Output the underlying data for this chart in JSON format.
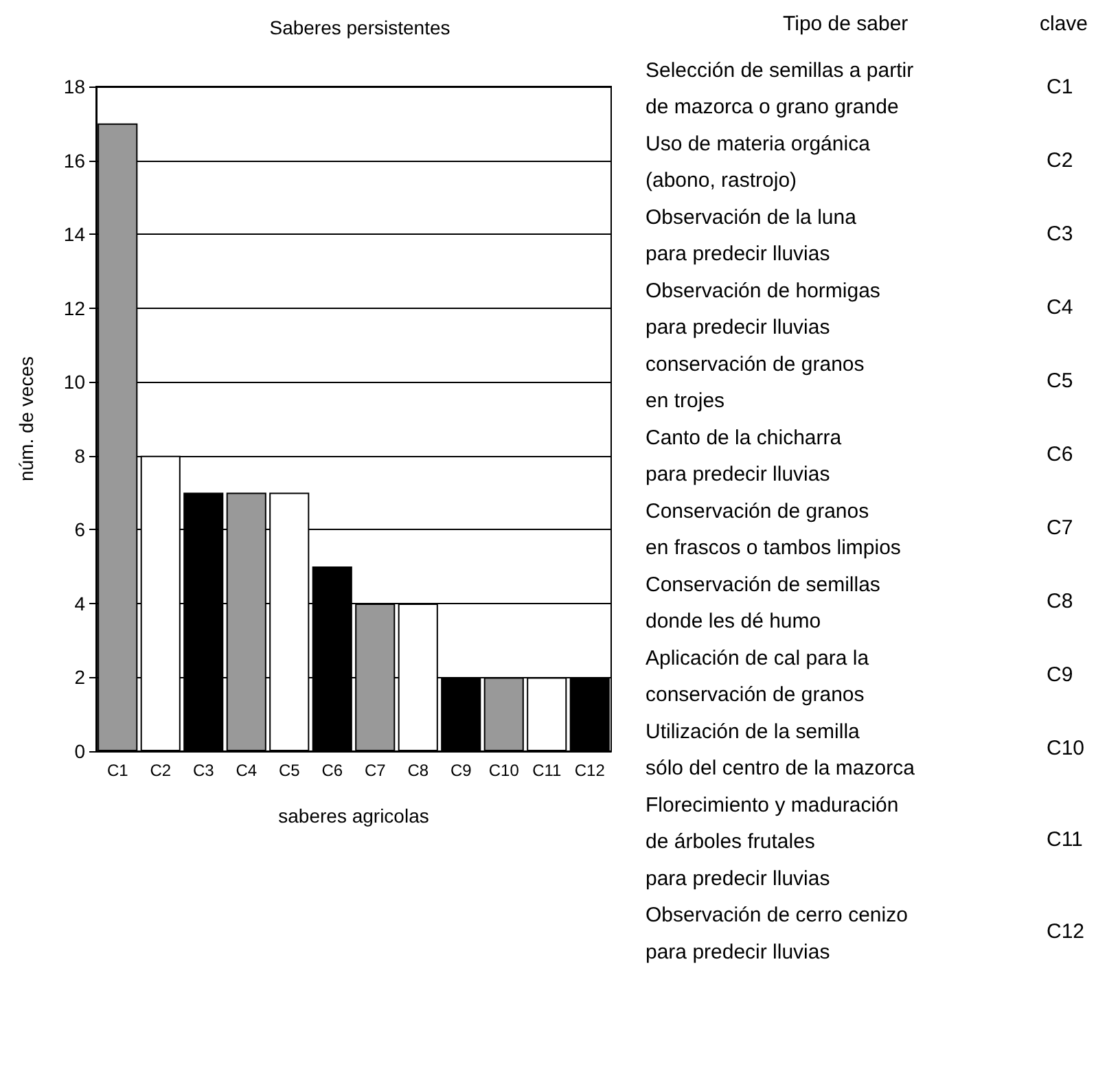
{
  "chart_data": {
    "type": "bar",
    "title": "Saberes persistentes",
    "xlabel": "saberes agricolas",
    "ylabel": "núm. de veces",
    "categories": [
      "C1",
      "C2",
      "C3",
      "C4",
      "C5",
      "C6",
      "C7",
      "C8",
      "C9",
      "C10",
      "C11",
      "C12"
    ],
    "values": [
      17,
      8,
      7,
      7,
      7,
      5,
      4,
      4,
      2,
      2,
      2,
      2
    ],
    "colors": [
      "#999999",
      "#ffffff",
      "#000000",
      "#999999",
      "#ffffff",
      "#000000",
      "#999999",
      "#ffffff",
      "#000000",
      "#999999",
      "#ffffff",
      "#000000"
    ],
    "ylim": [
      0,
      18
    ],
    "yticks": [
      0,
      2,
      4,
      6,
      8,
      10,
      12,
      14,
      16,
      18
    ],
    "grid": "y",
    "annotations": [
      "Tipo de saber",
      "clave",
      "Selección de semillas a partir\nde mazorca o grano grande",
      "C1",
      "Uso de materia orgánica\n(abono, rastrojo)",
      "C2",
      "Observación de la luna\npara predecir lluvias",
      "C3",
      "Observación de hormigas\npara predecir lluvias",
      "C4",
      "conservación de granos\nen trojes",
      "C5",
      "Canto de la chicharra\npara predecir lluvias",
      "C6",
      "Conservación de granos\nen frascos o tambos limpios",
      "C7",
      "Conservación de semillas\ndonde les dé humo",
      "C8",
      "Aplicación de cal para la\nconservación de granos",
      "C9",
      "Utilización de la semilla\nsólo del centro de la mazorca",
      "C10",
      "Florecimiento y maduración\nde árboles frutales\npara predecir lluvias",
      "C11",
      "Observación de cerro cenizo\npara predecir lluvias",
      "C12"
    ]
  }
}
